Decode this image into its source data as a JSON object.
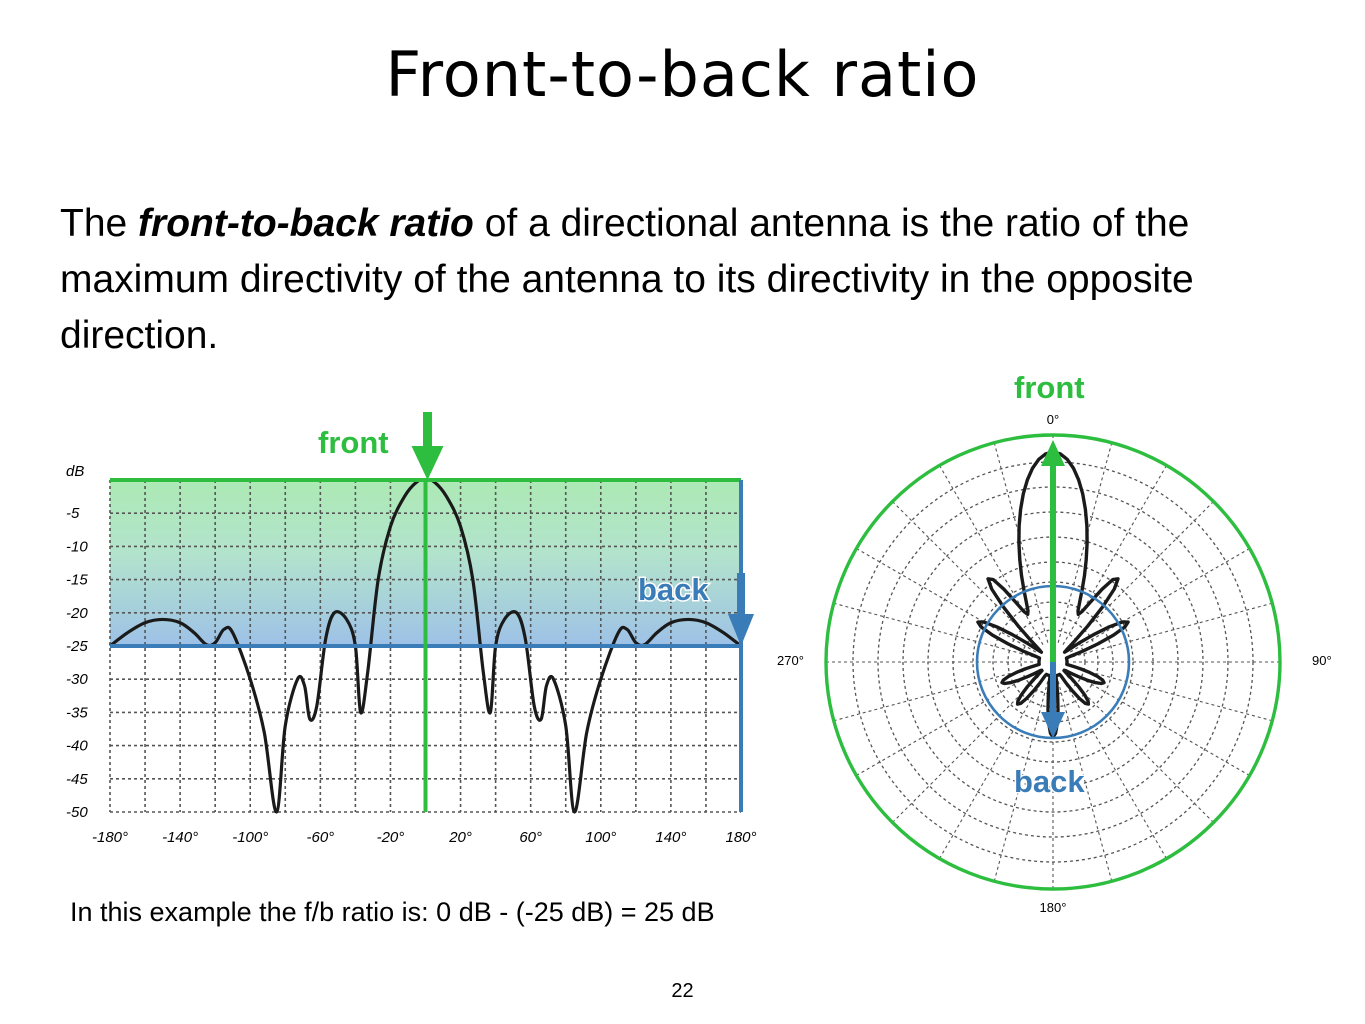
{
  "slide": {
    "title": "Front-to-back ratio",
    "body": {
      "part1": "The ",
      "emphasis": "front-to-back ratio",
      "part2": " of a directional antenna is the ratio of the maximum directivity of the antenna to its directivity in the opposite direction."
    },
    "caption": "In this example the f/b ratio is: 0 dB - (-25 dB) = 25 dB",
    "page_number": "22"
  },
  "colors": {
    "front": "#2dbd3f",
    "back": "#3a7cb8",
    "pattern": "#1a1a1a",
    "grid": "#555555"
  },
  "chart_data": [
    {
      "type": "line",
      "ylabel": "dB",
      "xlim": [
        -180,
        180
      ],
      "ylim": [
        -50,
        0
      ],
      "x_ticks": [
        "-180°",
        "-140°",
        "-100°",
        "-60°",
        "-20°",
        "20°",
        "60°",
        "100°",
        "140°",
        "180°"
      ],
      "y_ticks": [
        "-5",
        "-10",
        "-15",
        "-20",
        "-25",
        "-30",
        "-35",
        "-40",
        "-45",
        "-50"
      ],
      "grid": true,
      "series": [
        {
          "points": [
            [
              -180,
              -25
            ],
            [
              -170,
              -23
            ],
            [
              -160,
              -21.5
            ],
            [
              -150,
              -21
            ],
            [
              -140,
              -21.5
            ],
            [
              -132,
              -23
            ],
            [
              -125,
              -24.8
            ],
            [
              -120,
              -24.5
            ],
            [
              -115,
              -22.5
            ],
            [
              -110,
              -23
            ],
            [
              -100,
              -30
            ],
            [
              -92,
              -38
            ],
            [
              -85,
              -50
            ],
            [
              -80,
              -37
            ],
            [
              -73,
              -30
            ],
            [
              -69,
              -31
            ],
            [
              -66,
              -36
            ],
            [
              -62,
              -34
            ],
            [
              -57,
              -24
            ],
            [
              -52,
              -20
            ],
            [
              -45,
              -21
            ],
            [
              -40,
              -25
            ],
            [
              -37,
              -35
            ],
            [
              -33,
              -29
            ],
            [
              -27,
              -15
            ],
            [
              -20,
              -7
            ],
            [
              -12,
              -2.5
            ],
            [
              -5,
              -0.3
            ],
            [
              0,
              0
            ],
            [
              5,
              -0.3
            ],
            [
              12,
              -2.5
            ],
            [
              20,
              -7
            ],
            [
              27,
              -15
            ],
            [
              33,
              -29
            ],
            [
              37,
              -35
            ],
            [
              40,
              -25
            ],
            [
              45,
              -21
            ],
            [
              52,
              -20
            ],
            [
              57,
              -24
            ],
            [
              62,
              -34
            ],
            [
              66,
              -36
            ],
            [
              69,
              -31
            ],
            [
              73,
              -30
            ],
            [
              80,
              -37
            ],
            [
              85,
              -50
            ],
            [
              92,
              -38
            ],
            [
              100,
              -30
            ],
            [
              110,
              -23
            ],
            [
              115,
              -22.5
            ],
            [
              120,
              -24.5
            ],
            [
              125,
              -24.8
            ],
            [
              132,
              -23
            ],
            [
              140,
              -21.5
            ],
            [
              150,
              -21
            ],
            [
              160,
              -21.5
            ],
            [
              170,
              -23
            ],
            [
              180,
              -25
            ]
          ]
        }
      ],
      "front": {
        "label": "front",
        "angle_deg": 0,
        "level_db": 0
      },
      "back": {
        "label": "back",
        "angle_deg": 180,
        "level_db": -25
      }
    },
    {
      "type": "polar",
      "angle_labels": [
        "0°",
        "90°",
        "180°",
        "270°"
      ],
      "grid": true,
      "front": {
        "label": "front",
        "angle_deg": 0,
        "level_db": 0
      },
      "back": {
        "label": "back",
        "angle_deg": 180,
        "level_db": -25
      }
    }
  ]
}
